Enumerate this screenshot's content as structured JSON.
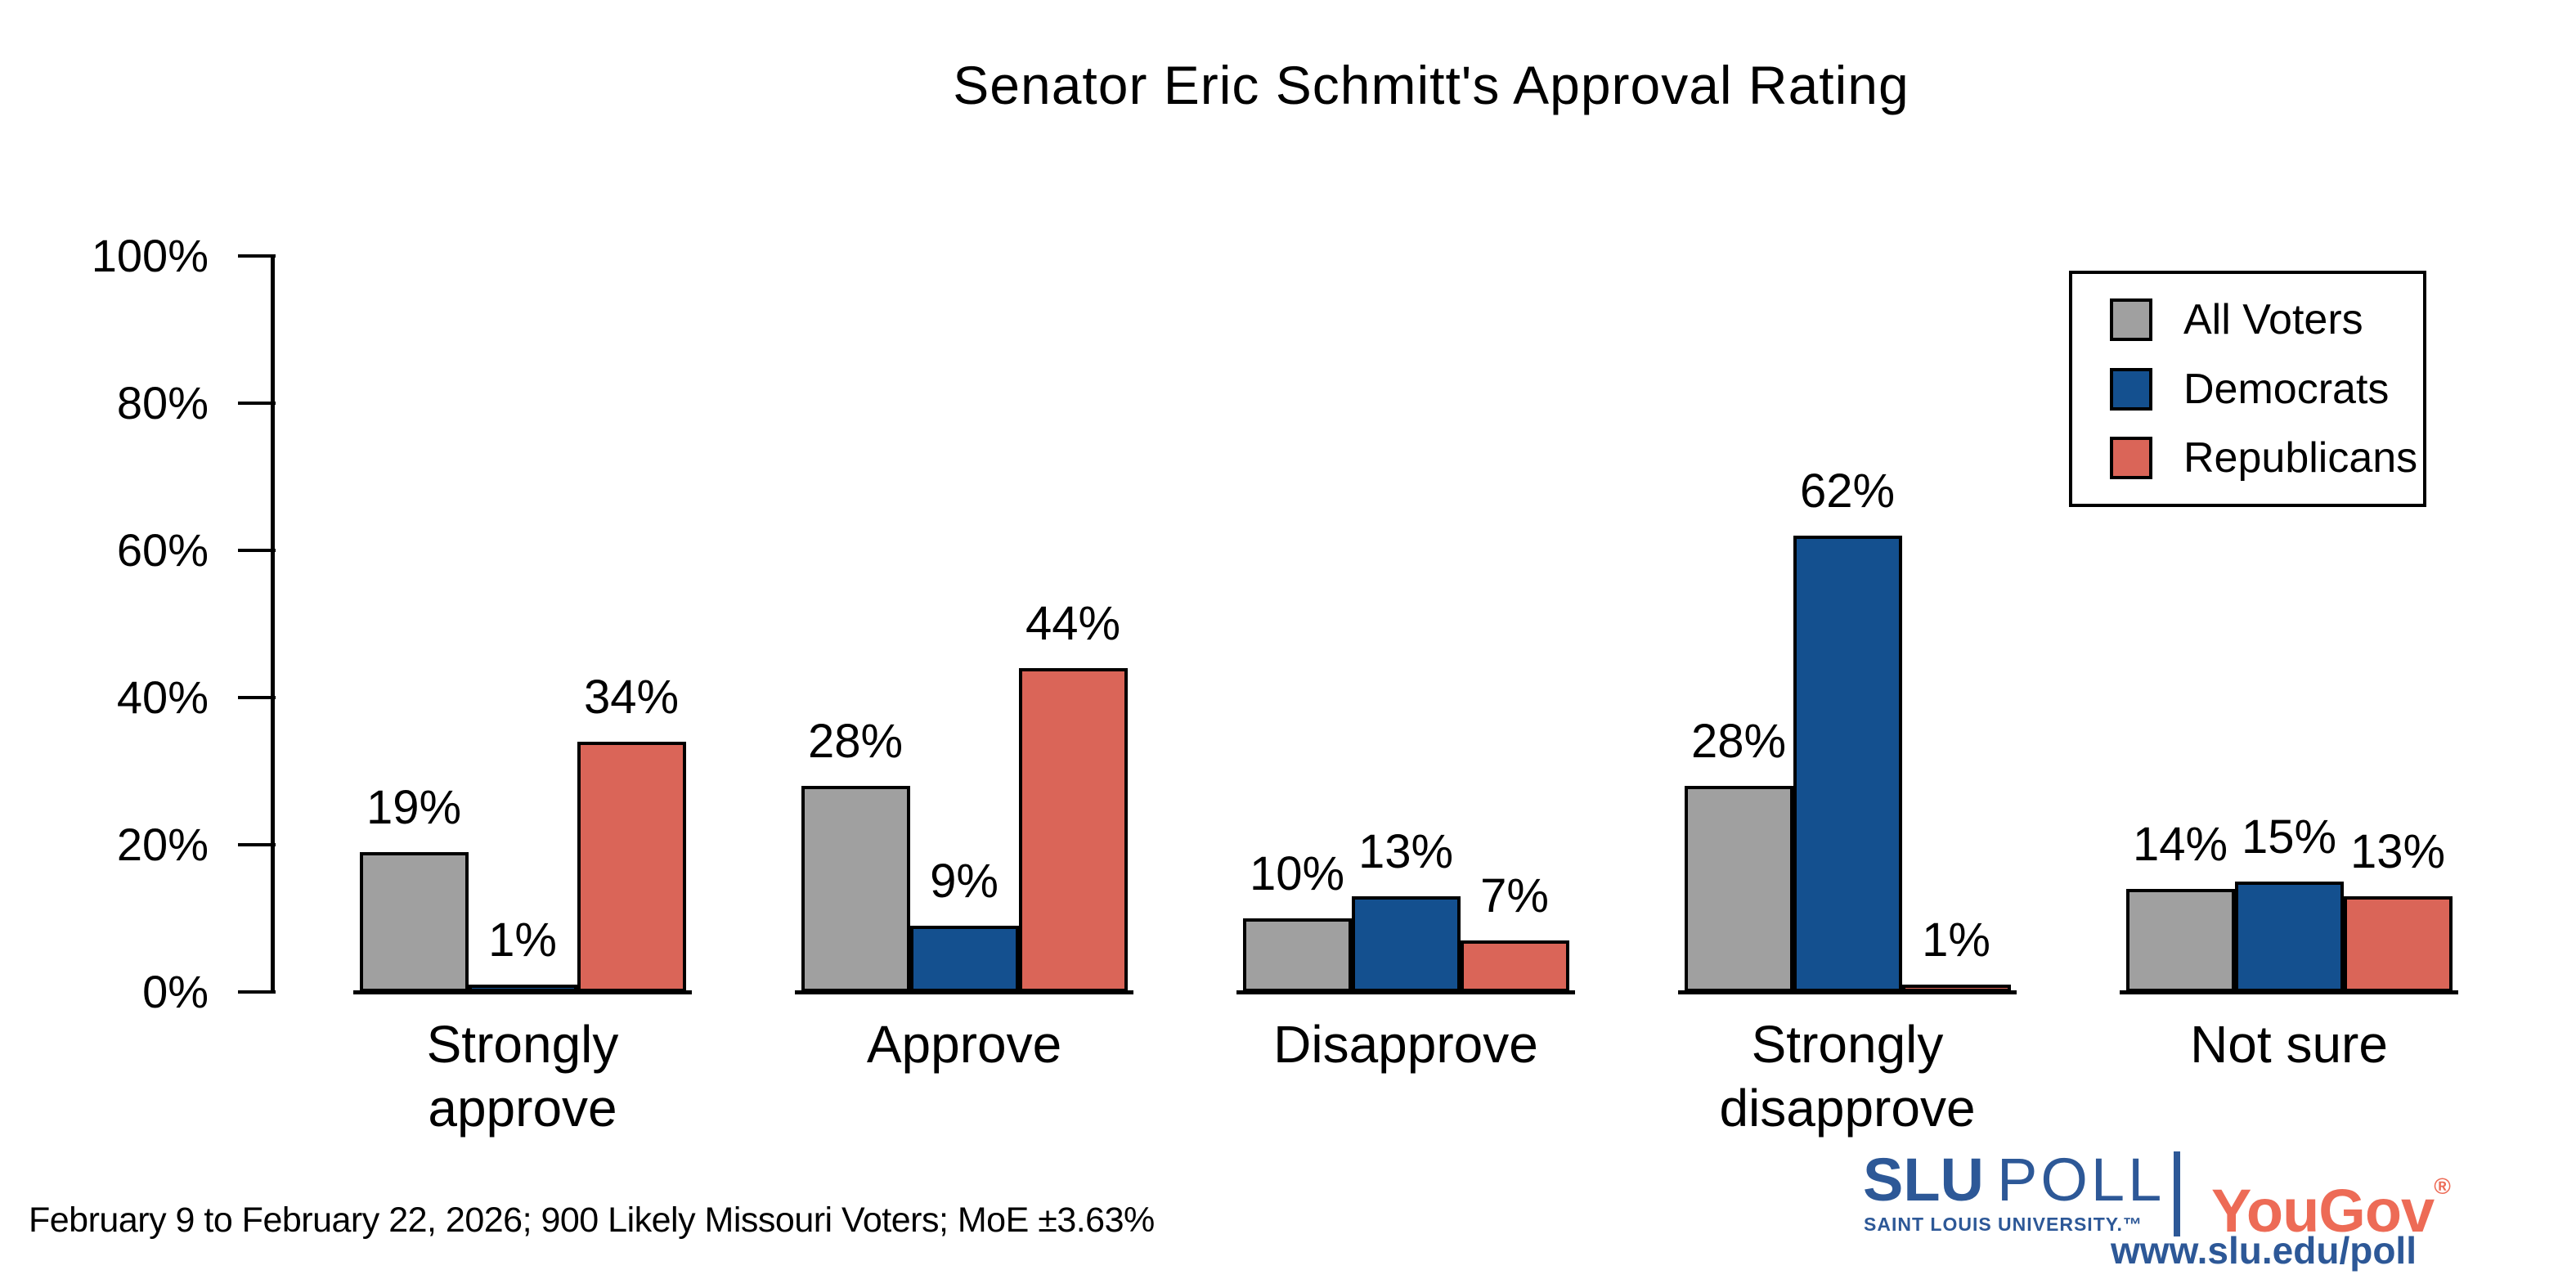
{
  "title": "Senator Eric Schmitt's Approval Rating",
  "caption": "February 9 to February 22, 2026; 900 Likely Missouri Voters; MoE ±3.63%",
  "colors": {
    "all_voters": "#A0A0A0",
    "democrats": "#14508F",
    "republicans": "#DA6558",
    "axis": "#000000",
    "slu_blue": "#2D5897",
    "yougov_red": "#ED6B56"
  },
  "legend": {
    "items": [
      {
        "label": "All Voters",
        "color": "#A0A0A0"
      },
      {
        "label": "Democrats",
        "color": "#14508F"
      },
      {
        "label": "Republicans",
        "color": "#DA6558"
      }
    ]
  },
  "chart_data": {
    "type": "bar",
    "title": "Senator Eric Schmitt's Approval Rating",
    "categories": [
      "Strongly\napprove",
      "Approve",
      "Disapprove",
      "Strongly\ndisapprove",
      "Not sure"
    ],
    "series": [
      {
        "name": "All Voters",
        "color": "#A0A0A0",
        "values": [
          19,
          28,
          10,
          28,
          14
        ]
      },
      {
        "name": "Democrats",
        "color": "#14508F",
        "values": [
          1,
          9,
          13,
          62,
          15
        ]
      },
      {
        "name": "Republicans",
        "color": "#DA6558",
        "values": [
          34,
          44,
          7,
          1,
          13
        ]
      }
    ],
    "value_labels": [
      [
        "19%",
        "28%",
        "10%",
        "28%",
        "14%"
      ],
      [
        "1%",
        "9%",
        "13%",
        "62%",
        "15%"
      ],
      [
        "34%",
        "44%",
        "7%",
        "1%",
        "13%"
      ]
    ],
    "xlabel": "",
    "ylabel": "",
    "ylim": [
      0,
      100
    ],
    "yticks": [
      "0%",
      "20%",
      "40%",
      "60%",
      "80%",
      "100%"
    ],
    "grid": false,
    "legend_position": "top-right"
  },
  "logo": {
    "slu": "SLU",
    "poll": "POLL",
    "subtitle": "SAINT LOUIS UNIVERSITY.™",
    "yougov": "YouGov",
    "yougov_reg": "®",
    "url": "www.slu.edu/poll"
  }
}
